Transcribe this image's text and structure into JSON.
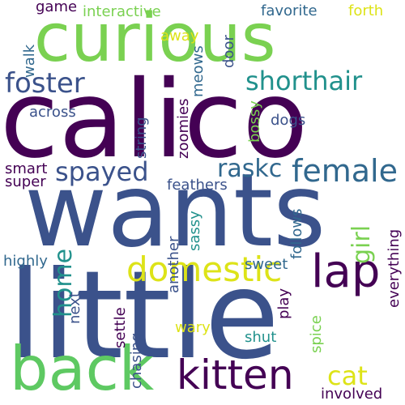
{
  "palette": {
    "dark_purple": "#440154",
    "indigo": "#3b528b",
    "blue": "#31688e",
    "teal": "#21918c",
    "green": "#5ec962",
    "light_green": "#7ad151",
    "yellow": "#dde318"
  },
  "words": [
    {
      "key": "little",
      "text": "little"
    },
    {
      "key": "wants",
      "text": "wants"
    },
    {
      "key": "calico",
      "text": "calico"
    },
    {
      "key": "curious",
      "text": "curious"
    },
    {
      "key": "back",
      "text": "back"
    },
    {
      "key": "kitten",
      "text": "kitten"
    },
    {
      "key": "lap",
      "text": "lap"
    },
    {
      "key": "domestic",
      "text": "domestic"
    },
    {
      "key": "female",
      "text": "female"
    },
    {
      "key": "spayed",
      "text": "spayed"
    },
    {
      "key": "foster",
      "text": "foster"
    },
    {
      "key": "shorthair",
      "text": "shorthair"
    },
    {
      "key": "raskc",
      "text": "raskc"
    },
    {
      "key": "home",
      "text": "home"
    },
    {
      "key": "girl",
      "text": "girl"
    },
    {
      "key": "cat",
      "text": "cat"
    },
    {
      "key": "game",
      "text": "game"
    },
    {
      "key": "interactive",
      "text": "interactive"
    },
    {
      "key": "favorite",
      "text": "favorite"
    },
    {
      "key": "forth",
      "text": "forth"
    },
    {
      "key": "away",
      "text": "away"
    },
    {
      "key": "door",
      "text": "door"
    },
    {
      "key": "walk",
      "text": "walk"
    },
    {
      "key": "meows",
      "text": "meows"
    },
    {
      "key": "zoomies",
      "text": "zoomies"
    },
    {
      "key": "string",
      "text": "string"
    },
    {
      "key": "across",
      "text": "across"
    },
    {
      "key": "bossy",
      "text": "bossy"
    },
    {
      "key": "dogs",
      "text": "dogs"
    },
    {
      "key": "smart",
      "text": "smart"
    },
    {
      "key": "super",
      "text": "super"
    },
    {
      "key": "feathers",
      "text": "feathers"
    },
    {
      "key": "another",
      "text": "another"
    },
    {
      "key": "sassy",
      "text": "sassy"
    },
    {
      "key": "follows",
      "text": "follows"
    },
    {
      "key": "everything",
      "text": "everything"
    },
    {
      "key": "highly",
      "text": "highly"
    },
    {
      "key": "next",
      "text": "next"
    },
    {
      "key": "sweet",
      "text": "sweet"
    },
    {
      "key": "play",
      "text": "play"
    },
    {
      "key": "settle",
      "text": "settle"
    },
    {
      "key": "wary",
      "text": "wary"
    },
    {
      "key": "shut",
      "text": "shut"
    },
    {
      "key": "spice",
      "text": "spice"
    },
    {
      "key": "chasing",
      "text": "chasing"
    },
    {
      "key": "involved",
      "text": "involved"
    }
  ]
}
